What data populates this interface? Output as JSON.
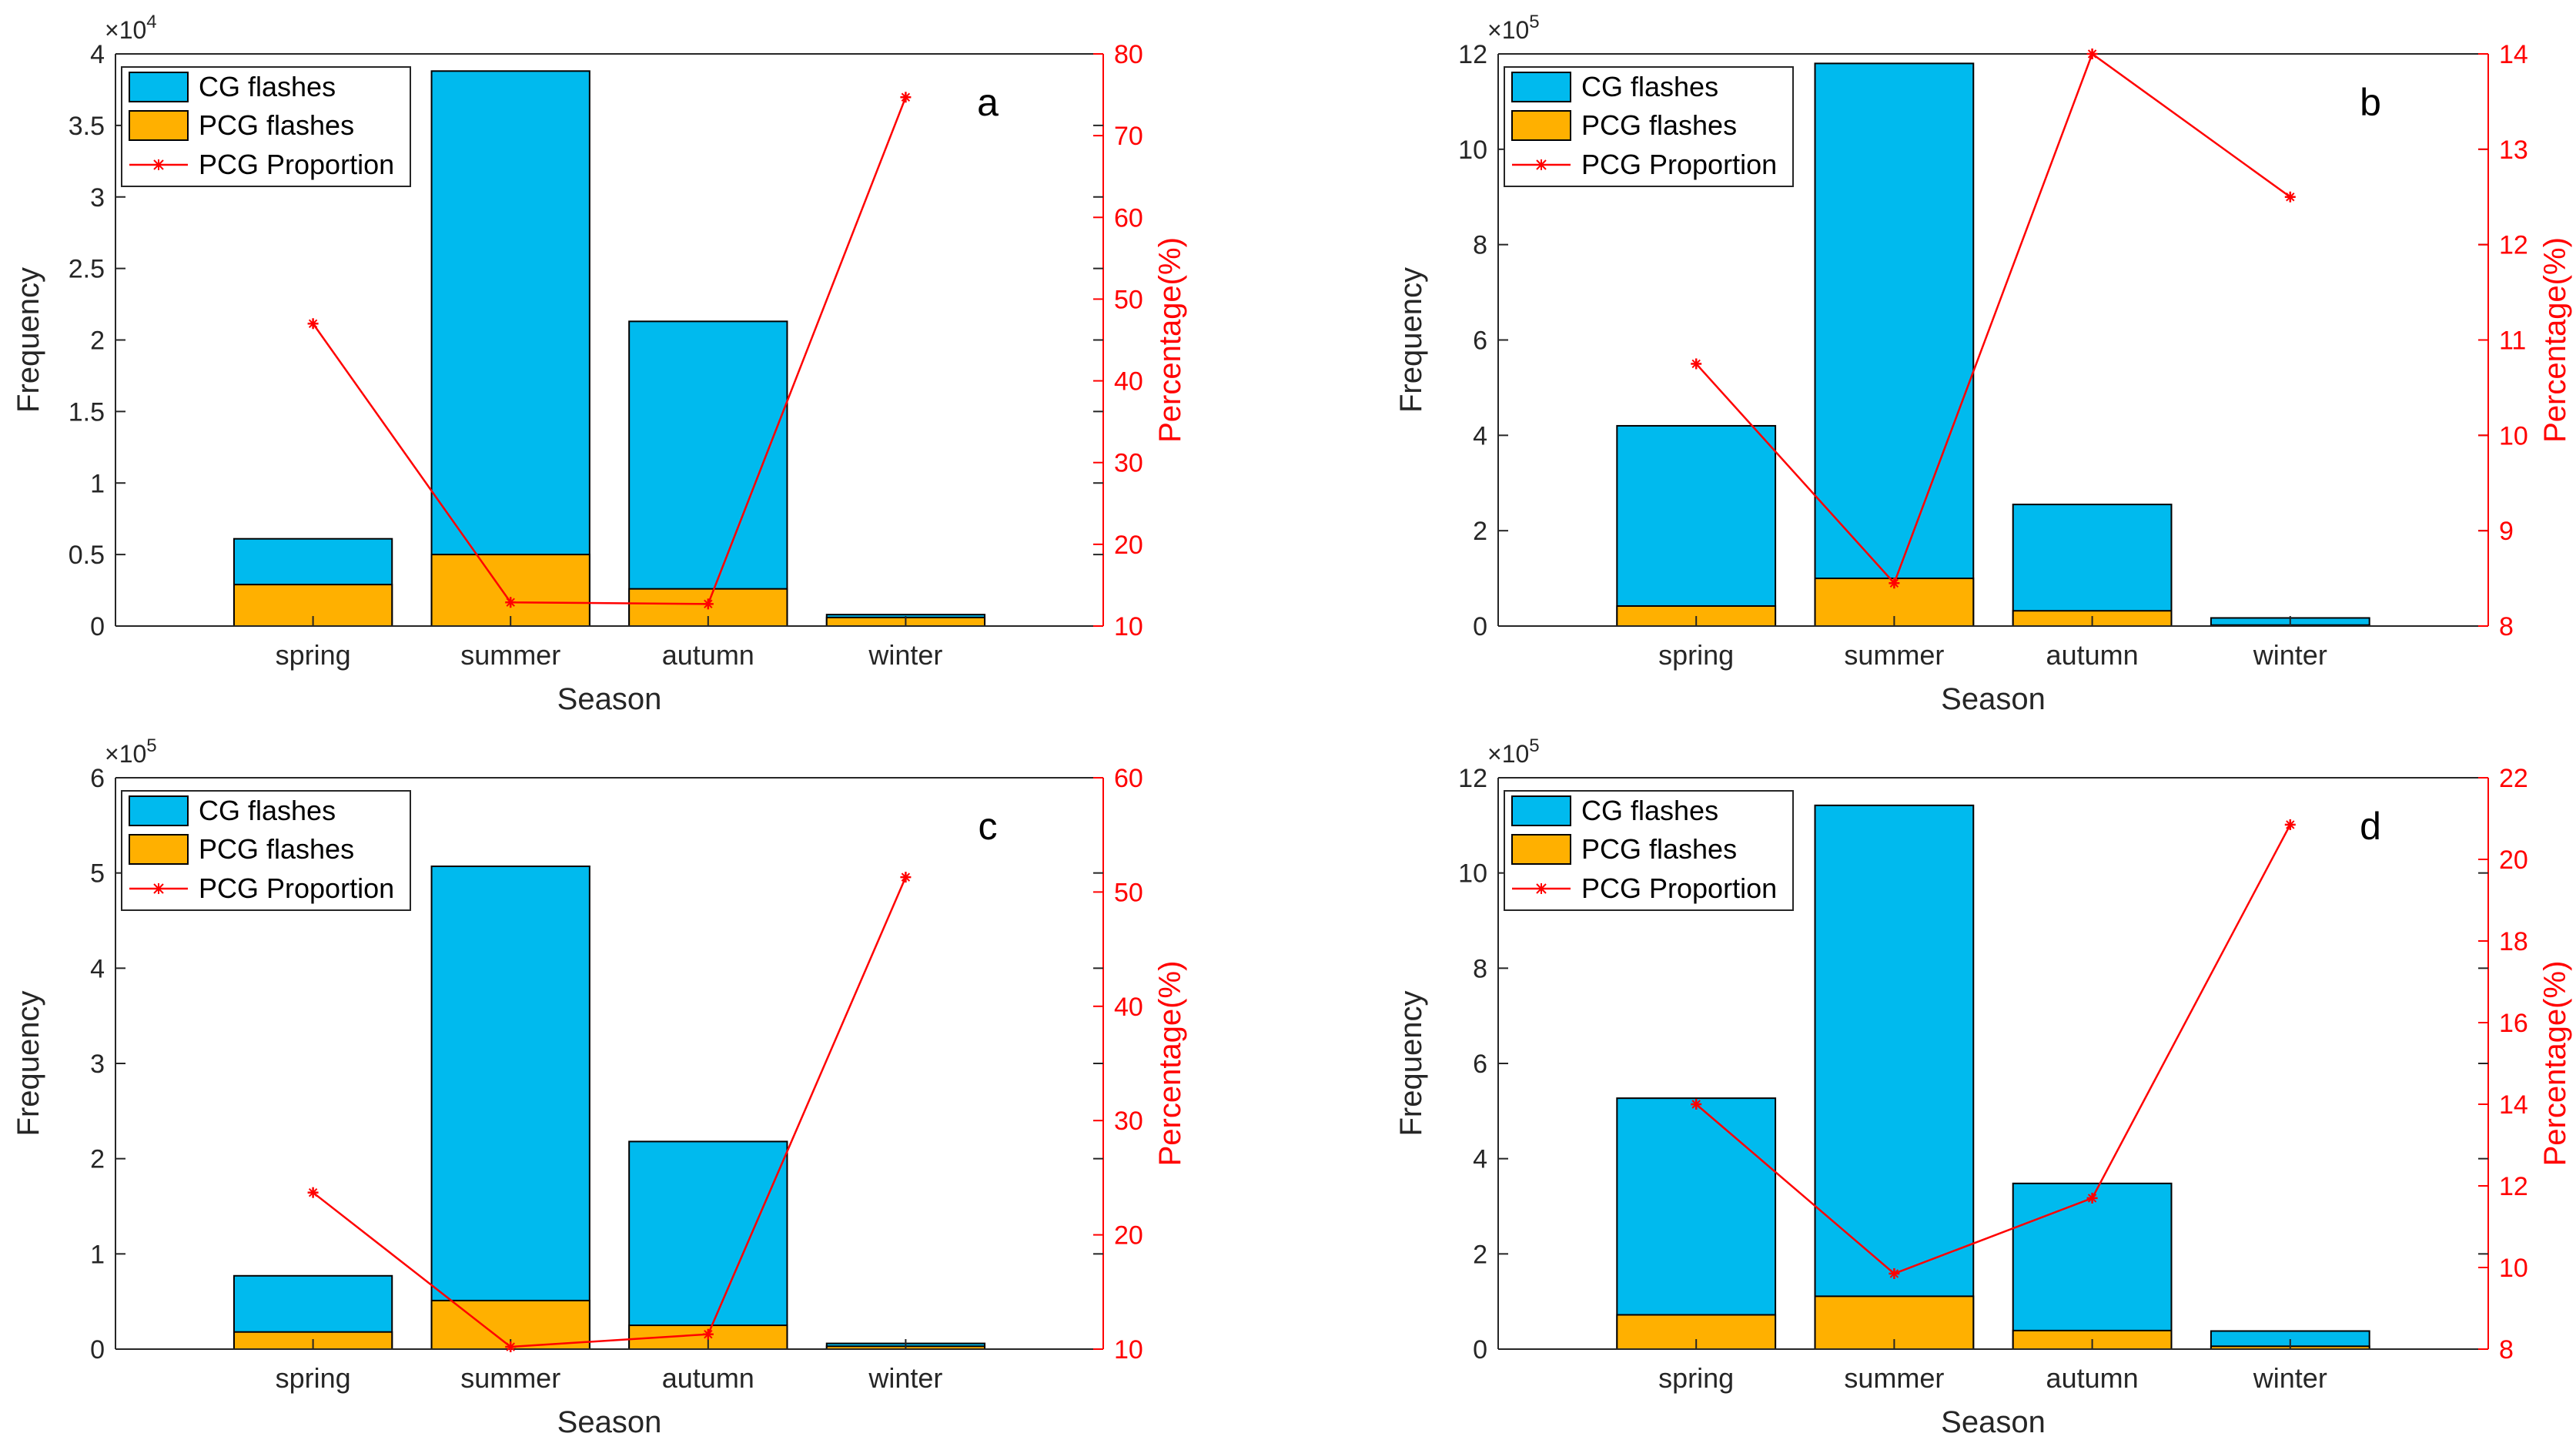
{
  "colors": {
    "cg_fill": "#00BAEE",
    "pcg_fill": "#FFB000",
    "proportion_line": "#FF0000",
    "axis": "#262626"
  },
  "chart_data": [
    {
      "type": "bar",
      "panel_label": "a",
      "categories": [
        "spring",
        "summer",
        "autumn",
        "winter"
      ],
      "xlabel": "Season",
      "ylabel": "Frequency",
      "y2label": "Percentage(%)",
      "exponent_base": "×10",
      "exponent_power": "4",
      "ylim": [
        0,
        4
      ],
      "yticks": [
        0,
        0.5,
        1,
        1.5,
        2,
        2.5,
        3,
        3.5,
        4
      ],
      "ytick_labels": [
        "0",
        "0.5",
        "1",
        "1.5",
        "2",
        "2.5",
        "3",
        "3.5",
        "4"
      ],
      "y2lim": [
        10,
        80
      ],
      "y2ticks": [
        10,
        20,
        30,
        40,
        50,
        60,
        70,
        80
      ],
      "y2tick_labels": [
        "10",
        "20",
        "30",
        "40",
        "50",
        "60",
        "70",
        "80"
      ],
      "series": [
        {
          "name": "CG flashes",
          "values": [
            0.61,
            3.88,
            2.13,
            0.08
          ]
        },
        {
          "name": "PCG flashes",
          "values": [
            0.29,
            0.5,
            0.26,
            0.06
          ]
        },
        {
          "name": "PCG Proportion",
          "values": [
            47,
            12.9,
            12.7,
            74.7
          ],
          "axis": "right"
        }
      ],
      "legend_position": "top-left"
    },
    {
      "type": "bar",
      "panel_label": "b",
      "categories": [
        "spring",
        "summer",
        "autumn",
        "winter"
      ],
      "xlabel": "Season",
      "ylabel": "Frequency",
      "y2label": "Percentage(%)",
      "exponent_base": "×10",
      "exponent_power": "5",
      "ylim": [
        0,
        12
      ],
      "yticks": [
        0,
        2,
        4,
        6,
        8,
        10,
        12
      ],
      "ytick_labels": [
        "0",
        "2",
        "4",
        "6",
        "8",
        "10",
        "12"
      ],
      "y2lim": [
        8,
        14
      ],
      "y2ticks": [
        8,
        9,
        10,
        11,
        12,
        13,
        14
      ],
      "y2tick_labels": [
        "8",
        "9",
        "10",
        "11",
        "12",
        "13",
        "14"
      ],
      "series": [
        {
          "name": "CG flashes",
          "values": [
            4.2,
            11.8,
            2.55,
            0.17
          ]
        },
        {
          "name": "PCG flashes",
          "values": [
            0.42,
            1.0,
            0.32,
            0.02
          ]
        },
        {
          "name": "PCG Proportion",
          "values": [
            10.75,
            8.45,
            14.0,
            12.5
          ],
          "axis": "right"
        }
      ],
      "legend_position": "top-left"
    },
    {
      "type": "bar",
      "panel_label": "c",
      "categories": [
        "spring",
        "summer",
        "autumn",
        "winter"
      ],
      "xlabel": "Season",
      "ylabel": "Frequency",
      "y2label": "Percentage(%)",
      "exponent_base": "×10",
      "exponent_power": "5",
      "ylim": [
        0,
        6
      ],
      "yticks": [
        0,
        1,
        2,
        3,
        4,
        5,
        6
      ],
      "ytick_labels": [
        "0",
        "1",
        "2",
        "3",
        "4",
        "5",
        "6"
      ],
      "y2lim": [
        10,
        60
      ],
      "y2ticks": [
        10,
        20,
        30,
        40,
        50,
        60
      ],
      "y2tick_labels": [
        "10",
        "20",
        "30",
        "40",
        "50",
        "60"
      ],
      "series": [
        {
          "name": "CG flashes",
          "values": [
            0.77,
            5.07,
            2.18,
            0.06
          ]
        },
        {
          "name": "PCG flashes",
          "values": [
            0.18,
            0.51,
            0.25,
            0.03
          ]
        },
        {
          "name": "PCG Proportion",
          "values": [
            23.7,
            10.2,
            11.3,
            51.3
          ],
          "axis": "right"
        }
      ],
      "legend_position": "top-left"
    },
    {
      "type": "bar",
      "panel_label": "d",
      "categories": [
        "spring",
        "summer",
        "autumn",
        "winter"
      ],
      "xlabel": "Season",
      "ylabel": "Frequency",
      "y2label": "Percentage(%)",
      "exponent_base": "×10",
      "exponent_power": "5",
      "ylim": [
        0,
        12
      ],
      "yticks": [
        0,
        2,
        4,
        6,
        8,
        10,
        12
      ],
      "ytick_labels": [
        "0",
        "2",
        "4",
        "6",
        "8",
        "10",
        "12"
      ],
      "y2lim": [
        8,
        22
      ],
      "y2ticks": [
        8,
        10,
        12,
        14,
        16,
        18,
        20,
        22
      ],
      "y2tick_labels": [
        "8",
        "10",
        "12",
        "14",
        "16",
        "18",
        "20",
        "22"
      ],
      "series": [
        {
          "name": "CG flashes",
          "values": [
            5.27,
            11.42,
            3.48,
            0.38
          ]
        },
        {
          "name": "PCG flashes",
          "values": [
            0.72,
            1.11,
            0.39,
            0.06
          ]
        },
        {
          "name": "PCG Proportion",
          "values": [
            14.0,
            9.85,
            11.7,
            20.85
          ],
          "axis": "right"
        }
      ],
      "legend_position": "top-left"
    }
  ]
}
